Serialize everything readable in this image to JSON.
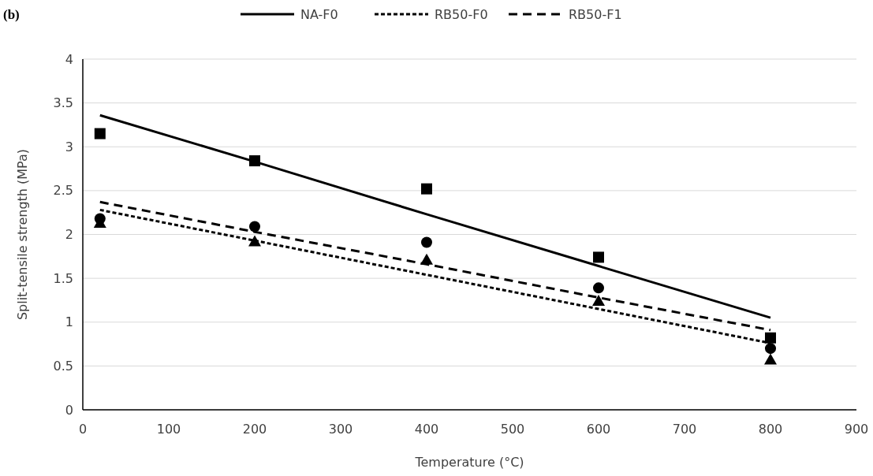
{
  "chart_data": {
    "type": "scatter",
    "title": "(b)",
    "xlabel": "Temperature (°C)",
    "ylabel": "Split-tensile strength (MPa)",
    "x": [
      20,
      200,
      400,
      600,
      800
    ],
    "series": [
      {
        "color": "#000000",
        "marker": "square",
        "values": [
          3.15,
          2.84,
          2.52,
          1.74,
          0.82
        ]
      },
      {
        "color": "#000000",
        "marker": "circle",
        "values": [
          2.18,
          2.09,
          1.91,
          1.39,
          0.7
        ]
      },
      {
        "color": "#000000",
        "marker": "triangle",
        "values": [
          2.13,
          1.92,
          1.71,
          1.24,
          0.57
        ]
      },
      {
        "type": "line",
        "name": "NA-F0",
        "color": "#000000",
        "line_style": "solid",
        "values": [
          3.36,
          2.83,
          2.23,
          1.64,
          1.05
        ]
      },
      {
        "type": "line",
        "name": "RB50-F0",
        "color": "#000000",
        "line_style": "dotted",
        "values": [
          2.28,
          1.93,
          1.54,
          1.15,
          0.76
        ]
      },
      {
        "type": "line",
        "name": "RB50-F1",
        "color": "#000000",
        "line_style": "dashed",
        "values": [
          2.37,
          2.03,
          1.66,
          1.28,
          0.91
        ]
      }
    ],
    "xlim": [
      0,
      900
    ],
    "xticks": [
      0,
      100,
      200,
      300,
      400,
      500,
      600,
      700,
      800,
      900
    ],
    "ylim": [
      0,
      4
    ],
    "yticks": [
      0,
      0.5,
      1,
      1.5,
      2,
      2.5,
      3,
      3.5,
      4
    ],
    "grid": "y",
    "legend": "top"
  }
}
